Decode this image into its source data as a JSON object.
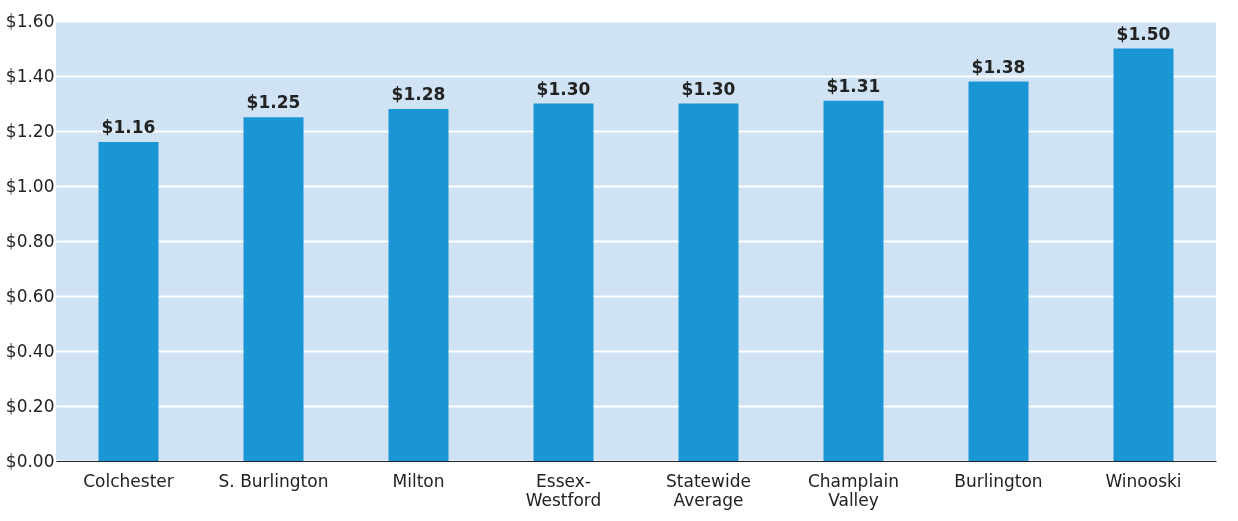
{
  "chart_data": {
    "type": "bar",
    "categories": [
      "Colchester",
      "S. Burlington",
      "Milton",
      "Essex-\nWestford",
      "Statewide\nAverage",
      "Champlain\nValley",
      "Burlington",
      "Winooski"
    ],
    "values": [
      1.16,
      1.25,
      1.28,
      1.3,
      1.3,
      1.31,
      1.38,
      1.5
    ],
    "value_labels": [
      "$1.16",
      "$1.25",
      "$1.28",
      "$1.30",
      "$1.30",
      "$1.31",
      "$1.38",
      "$1.50"
    ],
    "color": "#1a96d4",
    "ylim": [
      0,
      1.6
    ],
    "yticks": [
      {
        "value": 0,
        "label": "$0.00"
      },
      {
        "value": 0.2,
        "label": "$0.20"
      },
      {
        "value": 0.4,
        "label": "$0.40"
      },
      {
        "value": 0.6,
        "label": "$0.60"
      },
      {
        "value": 0.8,
        "label": "$0.80"
      },
      {
        "value": 1.0,
        "label": "$1.00"
      },
      {
        "value": 1.2,
        "label": "$1.20"
      },
      {
        "value": 1.4,
        "label": "$1.40"
      },
      {
        "value": 1.6,
        "label": "$1.60"
      }
    ],
    "grid": "y"
  }
}
